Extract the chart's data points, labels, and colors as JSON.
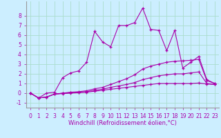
{
  "xlabel": "Windchill (Refroidissement éolien,°C)",
  "ylabel": "",
  "background_color": "#cceeff",
  "grid_color": "#aaddcc",
  "line_color": "#aa00aa",
  "xlim": [
    -0.5,
    23.5
  ],
  "ylim": [
    -1.5,
    9.5
  ],
  "yticks": [
    -1,
    0,
    1,
    2,
    3,
    4,
    5,
    6,
    7,
    8
  ],
  "xticks": [
    0,
    1,
    2,
    3,
    4,
    5,
    6,
    7,
    8,
    9,
    10,
    11,
    12,
    13,
    14,
    15,
    16,
    17,
    18,
    19,
    20,
    21,
    22,
    23
  ],
  "series": [
    [
      0.0,
      -0.5,
      -0.4,
      -0.1,
      -0.05,
      0.0,
      0.05,
      0.1,
      0.2,
      0.3,
      0.4,
      0.5,
      0.6,
      0.7,
      0.8,
      0.9,
      1.0,
      1.0,
      1.0,
      1.0,
      1.0,
      1.05,
      0.95,
      0.9
    ],
    [
      0.0,
      -0.5,
      -0.4,
      -0.1,
      0.0,
      0.05,
      0.1,
      0.15,
      0.3,
      0.4,
      0.6,
      0.75,
      0.9,
      1.1,
      1.4,
      1.6,
      1.8,
      1.9,
      2.0,
      2.0,
      2.1,
      2.2,
      1.0,
      0.9
    ],
    [
      0.0,
      -0.5,
      -0.4,
      -0.1,
      0.0,
      0.1,
      0.15,
      0.25,
      0.45,
      0.6,
      0.9,
      1.2,
      1.5,
      1.9,
      2.5,
      2.8,
      3.0,
      3.2,
      3.3,
      3.35,
      3.4,
      3.5,
      1.3,
      1.0
    ],
    [
      0.0,
      -0.5,
      0.0,
      0.1,
      1.6,
      2.1,
      2.3,
      3.2,
      6.4,
      5.3,
      4.8,
      7.0,
      7.0,
      7.3,
      8.8,
      6.6,
      6.5,
      4.4,
      6.5,
      2.6,
      3.2,
      3.8,
      1.4,
      1.0
    ]
  ],
  "xlabel_fontsize": 6,
  "tick_fontsize": 5.5
}
